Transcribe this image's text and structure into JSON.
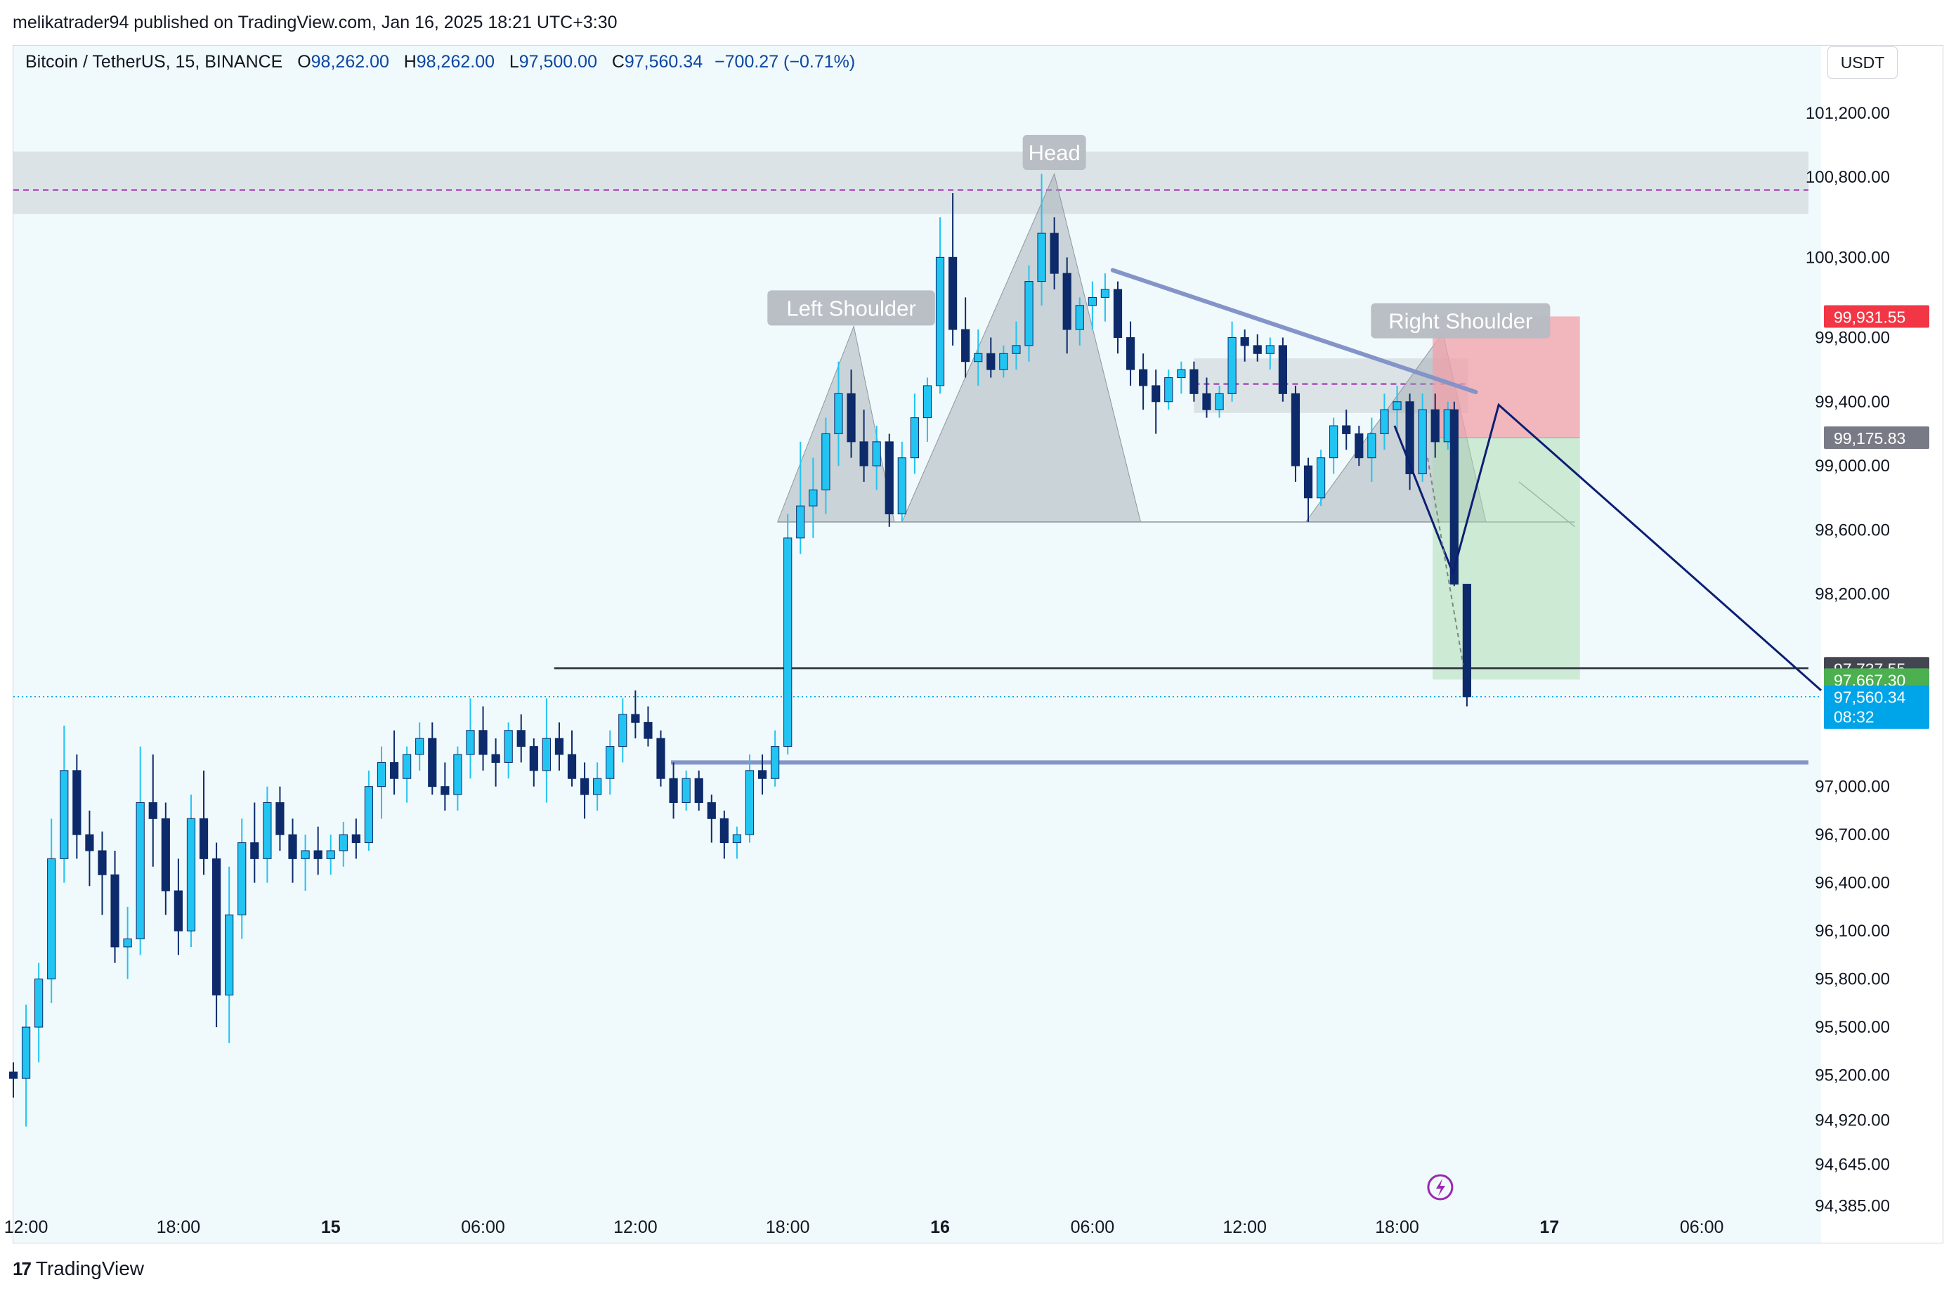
{
  "header": {
    "published": "melikatrader94 published on TradingView.com, Jan 16, 2025 18:21 UTC+3:30"
  },
  "legend": {
    "symbol": "Bitcoin / TetherUS, 15, BINANCE",
    "open_label": "O",
    "open": "98,262.00",
    "high_label": "H",
    "high": "98,262.00",
    "low_label": "L",
    "low": "97,500.00",
    "close_label": "C",
    "close": "97,560.34",
    "change": "−700.27 (−0.71%)"
  },
  "toolbar": {
    "currency": "USDT"
  },
  "footer": {
    "brand": "TradingView",
    "logo_icon": "tradingview-logo-icon"
  },
  "colors": {
    "up": "#22c4f2",
    "down": "#0d2a6b",
    "background": "#f0f9fb",
    "pattern": "#9aa3ad",
    "stop": "#f2a0a8",
    "target": "#a9dcae",
    "trend": "#8494c8",
    "projection": "#0d1f73",
    "price_badge": "#00a4e8"
  },
  "chart_data": {
    "type": "candlestick",
    "symbol": "Bitcoin / TetherUS",
    "interval": "15",
    "exchange": "BINANCE",
    "y_axis": {
      "ticks": [
        101200,
        100800,
        100300,
        99800,
        99400,
        99000,
        98600,
        98200,
        97000,
        96700,
        96400,
        96100,
        95800,
        95500,
        95200,
        94920,
        94645,
        94385
      ],
      "tick_labels": [
        "101,200.00",
        "100,800.00",
        "100,300.00",
        "99,800.00",
        "99,400.00",
        "99,000.00",
        "98,600.00",
        "98,200.00",
        "97,000.00",
        "96,700.00",
        "96,400.00",
        "96,100.00",
        "95,800.00",
        "95,500.00",
        "95,200.00",
        "94,920.00",
        "94,645.00",
        "94,385.00"
      ],
      "ylim": [
        94230,
        101620
      ]
    },
    "x_axis": {
      "tick_labels": [
        "12:00",
        "18:00",
        "15",
        "06:00",
        "12:00",
        "18:00",
        "16",
        "06:00",
        "12:00",
        "18:00",
        "17",
        "06:00"
      ],
      "bold": [
        false,
        false,
        true,
        false,
        false,
        false,
        true,
        false,
        false,
        false,
        true,
        false
      ],
      "tick_hours": [
        12,
        18,
        24,
        30,
        36,
        42,
        48,
        54,
        60,
        66,
        72,
        78
      ],
      "xlim": [
        11.5,
        82.7
      ]
    },
    "price_labels": [
      {
        "value": 99931.55,
        "label": "99,931.55",
        "color": "#f23645"
      },
      {
        "value": 99175.83,
        "label": "99,175.83",
        "color": "#787b86"
      },
      {
        "value": 97737.55,
        "label": "97,737.55",
        "color": "#434651"
      },
      {
        "value": 97667.3,
        "label": "97,667.30",
        "color": "#4caf50"
      },
      {
        "value": 97560.34,
        "label": "97,560.34",
        "sublabel": "08:32",
        "color": "#00a4e8"
      }
    ],
    "annotations": [
      {
        "text": "Left Shoulder",
        "hour": 44.5,
        "value": 99980
      },
      {
        "text": "Head",
        "hour": 52.5,
        "value": 100950
      },
      {
        "text": "Right Shoulder",
        "hour": 68.5,
        "value": 99900
      }
    ],
    "pattern": {
      "left_shoulder": [
        [
          41.6,
          98650
        ],
        [
          44.6,
          99870
        ],
        [
          46.2,
          98650
        ]
      ],
      "head": [
        [
          46.5,
          98650
        ],
        [
          52.5,
          100820
        ],
        [
          55.9,
          98650
        ]
      ],
      "right_shoulder": [
        [
          62.4,
          98650
        ],
        [
          67.8,
          99830
        ],
        [
          69.5,
          98650
        ]
      ],
      "right_extension": [
        [
          70.8,
          98900
        ],
        [
          73.0,
          98620
        ]
      ],
      "neckline": {
        "value": 98650,
        "from": 41.6,
        "to": 73.0
      }
    },
    "resistance_zone": {
      "from_value": 100570,
      "to_value": 100960,
      "dashed_value": 100720,
      "from_hour": 11.5,
      "to_hour": 82.2
    },
    "small_zone": {
      "from_value": 99330,
      "to_value": 99670,
      "dashed_value": 99510,
      "from_hour": 58.0,
      "to_hour": 68.8
    },
    "position": {
      "entry": 99175.83,
      "stop": 99931.55,
      "target": 97667.3,
      "from_hour": 67.4,
      "to_hour": 73.2
    },
    "lines": {
      "support": {
        "value": 97737.55,
        "from_hour": 32.8,
        "to_hour": 82.2
      },
      "lower_support": {
        "value": 97150,
        "from_hour": 37.4,
        "to_hour": 82.2
      },
      "last_price": {
        "value": 97560.34
      },
      "trendline": [
        [
          54.8,
          100220
        ],
        [
          69.1,
          99460
        ]
      ]
    },
    "projection": [
      [
        65.9,
        99250
      ],
      [
        68.2,
        98330
      ],
      [
        70.0,
        99380
      ],
      [
        82.7,
        97600
      ]
    ],
    "candles_hourly": [
      {
        "h": 11.5,
        "o": 95220,
        "hi": 95280,
        "l": 95060,
        "c": 95180
      },
      {
        "h": 12.0,
        "o": 95180,
        "hi": 95640,
        "l": 94880,
        "c": 95500
      },
      {
        "h": 12.5,
        "o": 95500,
        "hi": 95900,
        "l": 95280,
        "c": 95800
      },
      {
        "h": 13.0,
        "o": 95800,
        "hi": 96800,
        "l": 95650,
        "c": 96550
      },
      {
        "h": 13.5,
        "o": 96550,
        "hi": 97380,
        "l": 96400,
        "c": 97100
      },
      {
        "h": 14.0,
        "o": 97100,
        "hi": 97200,
        "l": 96550,
        "c": 96700
      },
      {
        "h": 14.5,
        "o": 96700,
        "hi": 96850,
        "l": 96380,
        "c": 96600
      },
      {
        "h": 15.0,
        "o": 96600,
        "hi": 96720,
        "l": 96200,
        "c": 96450
      },
      {
        "h": 15.5,
        "o": 96450,
        "hi": 96600,
        "l": 95900,
        "c": 96000
      },
      {
        "h": 16.0,
        "o": 96000,
        "hi": 96250,
        "l": 95800,
        "c": 96050
      },
      {
        "h": 16.5,
        "o": 96050,
        "hi": 97250,
        "l": 95950,
        "c": 96900
      },
      {
        "h": 17.0,
        "o": 96900,
        "hi": 97200,
        "l": 96500,
        "c": 96800
      },
      {
        "h": 17.5,
        "o": 96800,
        "hi": 96900,
        "l": 96200,
        "c": 96350
      },
      {
        "h": 18.0,
        "o": 96350,
        "hi": 96550,
        "l": 95950,
        "c": 96100
      },
      {
        "h": 18.5,
        "o": 96100,
        "hi": 96950,
        "l": 96000,
        "c": 96800
      },
      {
        "h": 19.0,
        "o": 96800,
        "hi": 97100,
        "l": 96450,
        "c": 96550
      },
      {
        "h": 19.5,
        "o": 96550,
        "hi": 96650,
        "l": 95500,
        "c": 95700
      },
      {
        "h": 20.0,
        "o": 95700,
        "hi": 96500,
        "l": 95400,
        "c": 96200
      },
      {
        "h": 20.5,
        "o": 96200,
        "hi": 96800,
        "l": 96050,
        "c": 96650
      },
      {
        "h": 21.0,
        "o": 96650,
        "hi": 96900,
        "l": 96400,
        "c": 96550
      },
      {
        "h": 21.5,
        "o": 96550,
        "hi": 97000,
        "l": 96400,
        "c": 96900
      },
      {
        "h": 22.0,
        "o": 96900,
        "hi": 97000,
        "l": 96600,
        "c": 96700
      },
      {
        "h": 22.5,
        "o": 96700,
        "hi": 96800,
        "l": 96400,
        "c": 96550
      },
      {
        "h": 23.0,
        "o": 96550,
        "hi": 96700,
        "l": 96350,
        "c": 96600
      },
      {
        "h": 23.5,
        "o": 96600,
        "hi": 96750,
        "l": 96450,
        "c": 96550
      },
      {
        "h": 24.0,
        "o": 96550,
        "hi": 96700,
        "l": 96450,
        "c": 96600
      },
      {
        "h": 24.5,
        "o": 96600,
        "hi": 96780,
        "l": 96500,
        "c": 96700
      },
      {
        "h": 25.0,
        "o": 96700,
        "hi": 96800,
        "l": 96550,
        "c": 96650
      },
      {
        "h": 25.5,
        "o": 96650,
        "hi": 97100,
        "l": 96600,
        "c": 97000
      },
      {
        "h": 26.0,
        "o": 97000,
        "hi": 97250,
        "l": 96800,
        "c": 97150
      },
      {
        "h": 26.5,
        "o": 97150,
        "hi": 97350,
        "l": 96950,
        "c": 97050
      },
      {
        "h": 27.0,
        "o": 97050,
        "hi": 97250,
        "l": 96900,
        "c": 97200
      },
      {
        "h": 27.5,
        "o": 97200,
        "hi": 97400,
        "l": 97100,
        "c": 97300
      },
      {
        "h": 28.0,
        "o": 97300,
        "hi": 97400,
        "l": 96950,
        "c": 97000
      },
      {
        "h": 28.5,
        "o": 97000,
        "hi": 97150,
        "l": 96850,
        "c": 96950
      },
      {
        "h": 29.0,
        "o": 96950,
        "hi": 97250,
        "l": 96850,
        "c": 97200
      },
      {
        "h": 29.5,
        "o": 97200,
        "hi": 97550,
        "l": 97050,
        "c": 97350
      },
      {
        "h": 30.0,
        "o": 97350,
        "hi": 97500,
        "l": 97100,
        "c": 97200
      },
      {
        "h": 30.5,
        "o": 97200,
        "hi": 97300,
        "l": 97000,
        "c": 97150
      },
      {
        "h": 31.0,
        "o": 97150,
        "hi": 97400,
        "l": 97050,
        "c": 97350
      },
      {
        "h": 31.5,
        "o": 97350,
        "hi": 97450,
        "l": 97150,
        "c": 97250
      },
      {
        "h": 32.0,
        "o": 97250,
        "hi": 97300,
        "l": 97000,
        "c": 97100
      },
      {
        "h": 32.5,
        "o": 97100,
        "hi": 97550,
        "l": 96900,
        "c": 97300
      },
      {
        "h": 33.0,
        "o": 97300,
        "hi": 97400,
        "l": 97100,
        "c": 97200
      },
      {
        "h": 33.5,
        "o": 97200,
        "hi": 97350,
        "l": 97000,
        "c": 97050
      },
      {
        "h": 34.0,
        "o": 97050,
        "hi": 97150,
        "l": 96800,
        "c": 96950
      },
      {
        "h": 34.5,
        "o": 96950,
        "hi": 97150,
        "l": 96850,
        "c": 97050
      },
      {
        "h": 35.0,
        "o": 97050,
        "hi": 97350,
        "l": 96950,
        "c": 97250
      },
      {
        "h": 35.5,
        "o": 97250,
        "hi": 97550,
        "l": 97150,
        "c": 97450
      },
      {
        "h": 36.0,
        "o": 97450,
        "hi": 97600,
        "l": 97300,
        "c": 97400
      },
      {
        "h": 36.5,
        "o": 97400,
        "hi": 97500,
        "l": 97250,
        "c": 97300
      },
      {
        "h": 37.0,
        "o": 97300,
        "hi": 97350,
        "l": 97000,
        "c": 97050
      },
      {
        "h": 37.5,
        "o": 97050,
        "hi": 97150,
        "l": 96800,
        "c": 96900
      },
      {
        "h": 38.0,
        "o": 96900,
        "hi": 97100,
        "l": 96850,
        "c": 97050
      },
      {
        "h": 38.5,
        "o": 97050,
        "hi": 97100,
        "l": 96850,
        "c": 96900
      },
      {
        "h": 39.0,
        "o": 96900,
        "hi": 96950,
        "l": 96650,
        "c": 96800
      },
      {
        "h": 39.5,
        "o": 96800,
        "hi": 96850,
        "l": 96550,
        "c": 96650
      },
      {
        "h": 40.0,
        "o": 96650,
        "hi": 96750,
        "l": 96550,
        "c": 96700
      },
      {
        "h": 40.5,
        "o": 96700,
        "hi": 97200,
        "l": 96650,
        "c": 97100
      },
      {
        "h": 41.0,
        "o": 97100,
        "hi": 97200,
        "l": 96950,
        "c": 97050
      },
      {
        "h": 41.5,
        "o": 97050,
        "hi": 97350,
        "l": 97000,
        "c": 97250
      },
      {
        "h": 42.0,
        "o": 97250,
        "hi": 98700,
        "l": 97200,
        "c": 98550
      },
      {
        "h": 42.5,
        "o": 98550,
        "hi": 99150,
        "l": 98450,
        "c": 98750
      },
      {
        "h": 43.0,
        "o": 98750,
        "hi": 99050,
        "l": 98550,
        "c": 98850
      },
      {
        "h": 43.5,
        "o": 98850,
        "hi": 99300,
        "l": 98700,
        "c": 99200
      },
      {
        "h": 44.0,
        "o": 99200,
        "hi": 99650,
        "l": 99000,
        "c": 99450
      },
      {
        "h": 44.5,
        "o": 99450,
        "hi": 99600,
        "l": 99050,
        "c": 99150
      },
      {
        "h": 45.0,
        "o": 99150,
        "hi": 99350,
        "l": 98900,
        "c": 99000
      },
      {
        "h": 45.5,
        "o": 99000,
        "hi": 99250,
        "l": 98850,
        "c": 99150
      },
      {
        "h": 46.0,
        "o": 99150,
        "hi": 99200,
        "l": 98620,
        "c": 98700
      },
      {
        "h": 46.5,
        "o": 98700,
        "hi": 99150,
        "l": 98650,
        "c": 99050
      },
      {
        "h": 47.0,
        "o": 99050,
        "hi": 99450,
        "l": 98950,
        "c": 99300
      },
      {
        "h": 47.5,
        "o": 99300,
        "hi": 99550,
        "l": 99150,
        "c": 99500
      },
      {
        "h": 48.0,
        "o": 99500,
        "hi": 100550,
        "l": 99450,
        "c": 100300
      },
      {
        "h": 48.5,
        "o": 100300,
        "hi": 100700,
        "l": 99750,
        "c": 99850
      },
      {
        "h": 49.0,
        "o": 99850,
        "hi": 100050,
        "l": 99550,
        "c": 99650
      },
      {
        "h": 49.5,
        "o": 99650,
        "hi": 99850,
        "l": 99500,
        "c": 99700
      },
      {
        "h": 50.0,
        "o": 99700,
        "hi": 99800,
        "l": 99550,
        "c": 99600
      },
      {
        "h": 50.5,
        "o": 99600,
        "hi": 99750,
        "l": 99550,
        "c": 99700
      },
      {
        "h": 51.0,
        "o": 99700,
        "hi": 99900,
        "l": 99600,
        "c": 99750
      },
      {
        "h": 51.5,
        "o": 99750,
        "hi": 100250,
        "l": 99650,
        "c": 100150
      },
      {
        "h": 52.0,
        "o": 100150,
        "hi": 100820,
        "l": 100000,
        "c": 100450
      },
      {
        "h": 52.5,
        "o": 100450,
        "hi": 100550,
        "l": 100100,
        "c": 100200
      },
      {
        "h": 53.0,
        "o": 100200,
        "hi": 100300,
        "l": 99700,
        "c": 99850
      },
      {
        "h": 53.5,
        "o": 99850,
        "hi": 100050,
        "l": 99750,
        "c": 100000
      },
      {
        "h": 54.0,
        "o": 100000,
        "hi": 100150,
        "l": 99850,
        "c": 100050
      },
      {
        "h": 54.5,
        "o": 100050,
        "hi": 100200,
        "l": 99900,
        "c": 100100
      },
      {
        "h": 55.0,
        "o": 100100,
        "hi": 100150,
        "l": 99700,
        "c": 99800
      },
      {
        "h": 55.5,
        "o": 99800,
        "hi": 99900,
        "l": 99500,
        "c": 99600
      },
      {
        "h": 56.0,
        "o": 99600,
        "hi": 99700,
        "l": 99350,
        "c": 99500
      },
      {
        "h": 56.5,
        "o": 99500,
        "hi": 99600,
        "l": 99200,
        "c": 99400
      },
      {
        "h": 57.0,
        "o": 99400,
        "hi": 99600,
        "l": 99350,
        "c": 99550
      },
      {
        "h": 57.5,
        "o": 99550,
        "hi": 99650,
        "l": 99450,
        "c": 99600
      },
      {
        "h": 58.0,
        "o": 99600,
        "hi": 99650,
        "l": 99400,
        "c": 99450
      },
      {
        "h": 58.5,
        "o": 99450,
        "hi": 99550,
        "l": 99300,
        "c": 99350
      },
      {
        "h": 59.0,
        "o": 99350,
        "hi": 99500,
        "l": 99300,
        "c": 99450
      },
      {
        "h": 59.5,
        "o": 99450,
        "hi": 99900,
        "l": 99400,
        "c": 99800
      },
      {
        "h": 60.0,
        "o": 99800,
        "hi": 99850,
        "l": 99650,
        "c": 99750
      },
      {
        "h": 60.5,
        "o": 99750,
        "hi": 99820,
        "l": 99650,
        "c": 99700
      },
      {
        "h": 61.0,
        "o": 99700,
        "hi": 99800,
        "l": 99600,
        "c": 99750
      },
      {
        "h": 61.5,
        "o": 99750,
        "hi": 99800,
        "l": 99400,
        "c": 99450
      },
      {
        "h": 62.0,
        "o": 99450,
        "hi": 99500,
        "l": 98900,
        "c": 99000
      },
      {
        "h": 62.5,
        "o": 99000,
        "hi": 99050,
        "l": 98650,
        "c": 98800
      },
      {
        "h": 63.0,
        "o": 98800,
        "hi": 99100,
        "l": 98750,
        "c": 99050
      },
      {
        "h": 63.5,
        "o": 99050,
        "hi": 99300,
        "l": 98950,
        "c": 99250
      },
      {
        "h": 64.0,
        "o": 99250,
        "hi": 99350,
        "l": 99100,
        "c": 99200
      },
      {
        "h": 64.5,
        "o": 99200,
        "hi": 99250,
        "l": 99000,
        "c": 99050
      },
      {
        "h": 65.0,
        "o": 99050,
        "hi": 99300,
        "l": 98900,
        "c": 99200
      },
      {
        "h": 65.5,
        "o": 99200,
        "hi": 99450,
        "l": 99100,
        "c": 99350
      },
      {
        "h": 66.0,
        "o": 99350,
        "hi": 99500,
        "l": 99200,
        "c": 99400
      },
      {
        "h": 66.5,
        "o": 99400,
        "hi": 99450,
        "l": 98850,
        "c": 98950
      },
      {
        "h": 67.0,
        "o": 98950,
        "hi": 99450,
        "l": 98900,
        "c": 99350
      },
      {
        "h": 67.5,
        "o": 99350,
        "hi": 99450,
        "l": 99050,
        "c": 99150
      },
      {
        "h": 68.0,
        "o": 99150,
        "hi": 99400,
        "l": 99100,
        "c": 99350
      },
      {
        "h": 68.25,
        "o": 99350,
        "hi": 99400,
        "l": 98250,
        "c": 98262
      },
      {
        "h": 68.75,
        "o": 98262,
        "hi": 98262,
        "l": 97500,
        "c": 97560
      }
    ]
  }
}
